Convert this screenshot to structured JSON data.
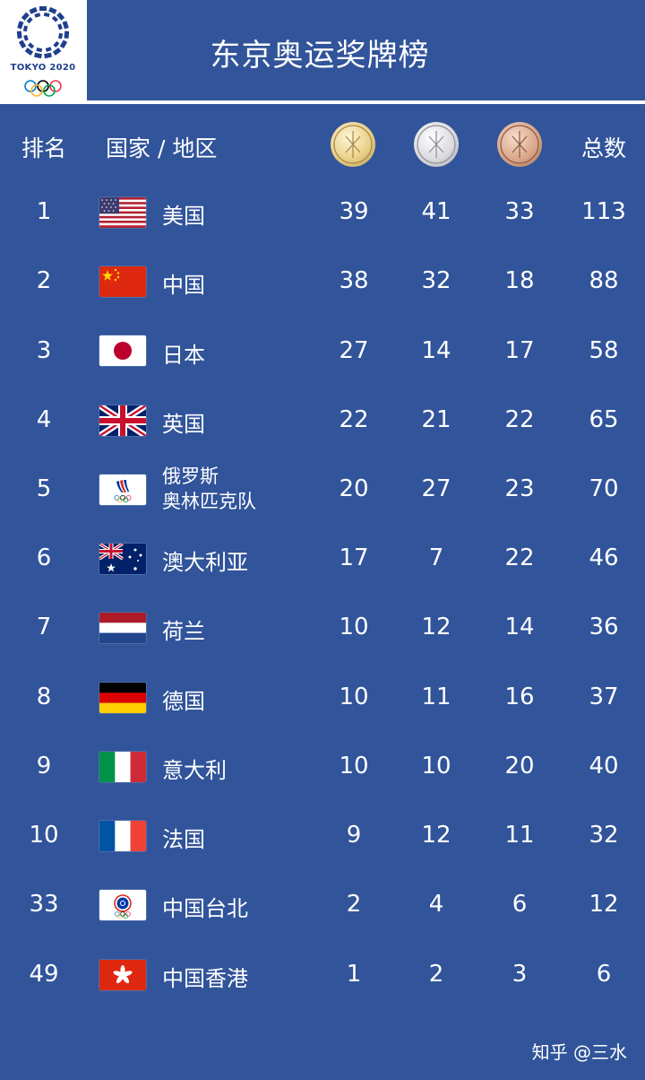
{
  "header": {
    "title": "东京奥运奖牌榜",
    "logo_text": "TOKYO 2020"
  },
  "columns": {
    "rank": "排名",
    "country": "国家 / 地区",
    "total": "总数"
  },
  "medal_icons": [
    "gold-medal-icon",
    "silver-medal-icon",
    "bronze-medal-icon"
  ],
  "colors": {
    "background": "#31549a",
    "gold": "#e6cf8d",
    "silver": "#d9d9dc",
    "bronze": "#d7a587"
  },
  "rows": [
    {
      "rank": "1",
      "name": "美国",
      "flag": "usa-flag-icon",
      "gold": "39",
      "silver": "41",
      "bronze": "33",
      "total": "113"
    },
    {
      "rank": "2",
      "name": "中国",
      "flag": "china-flag-icon",
      "gold": "38",
      "silver": "32",
      "bronze": "18",
      "total": "88"
    },
    {
      "rank": "3",
      "name": "日本",
      "flag": "japan-flag-icon",
      "gold": "27",
      "silver": "14",
      "bronze": "17",
      "total": "58"
    },
    {
      "rank": "4",
      "name": "英国",
      "flag": "uk-flag-icon",
      "gold": "22",
      "silver": "21",
      "bronze": "22",
      "total": "65"
    },
    {
      "rank": "5",
      "name_line1": "俄罗斯",
      "name_line2": "奥林匹克队",
      "flag": "roc-flag-icon",
      "gold": "20",
      "silver": "27",
      "bronze": "23",
      "total": "70"
    },
    {
      "rank": "6",
      "name": "澳大利亚",
      "flag": "australia-flag-icon",
      "gold": "17",
      "silver": "7",
      "bronze": "22",
      "total": "46"
    },
    {
      "rank": "7",
      "name": "荷兰",
      "flag": "netherlands-flag-icon",
      "gold": "10",
      "silver": "12",
      "bronze": "14",
      "total": "36"
    },
    {
      "rank": "8",
      "name": "德国",
      "flag": "germany-flag-icon",
      "gold": "10",
      "silver": "11",
      "bronze": "16",
      "total": "37"
    },
    {
      "rank": "9",
      "name": "意大利",
      "flag": "italy-flag-icon",
      "gold": "10",
      "silver": "10",
      "bronze": "20",
      "total": "40"
    },
    {
      "rank": "10",
      "name": "法国",
      "flag": "france-flag-icon",
      "gold": "9",
      "silver": "12",
      "bronze": "11",
      "total": "32"
    },
    {
      "rank": "33",
      "name": "中国台北",
      "flag": "chinese-taipei-flag-icon",
      "gold": "2",
      "silver": "4",
      "bronze": "6",
      "total": "12"
    },
    {
      "rank": "49",
      "name": "中国香港",
      "flag": "hong-kong-flag-icon",
      "gold": "1",
      "silver": "2",
      "bronze": "3",
      "total": "6"
    }
  ],
  "watermark": "知乎 @三水"
}
